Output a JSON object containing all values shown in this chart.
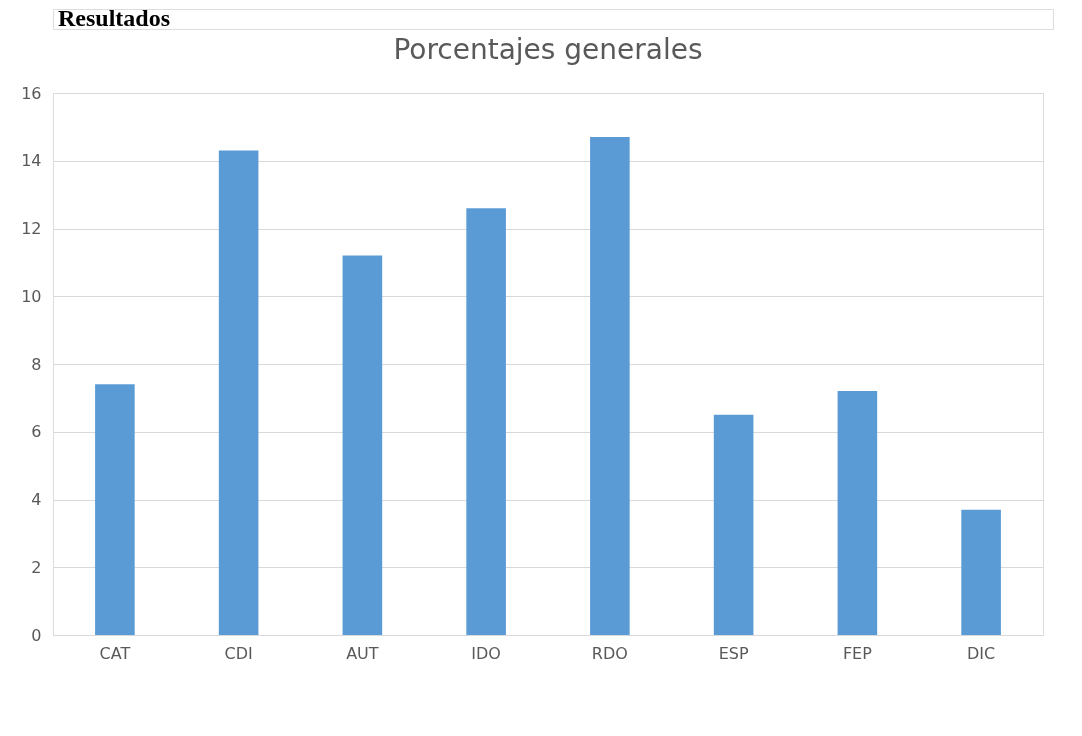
{
  "chart_data": {
    "type": "bar",
    "title": "Porcentajes generales",
    "annotations": [
      "Resultados"
    ],
    "categories": [
      "CAT",
      "CDI",
      "AUT",
      "IDO",
      "RDO",
      "ESP",
      "FEP",
      "DIC"
    ],
    "values": [
      7.4,
      14.3,
      11.2,
      12.6,
      14.7,
      6.5,
      7.2,
      3.7
    ],
    "color": "#5b9bd5",
    "ylim": [
      0,
      16
    ],
    "yticks": [
      0,
      2,
      4,
      6,
      8,
      10,
      12,
      14,
      16
    ],
    "grid": "y"
  }
}
